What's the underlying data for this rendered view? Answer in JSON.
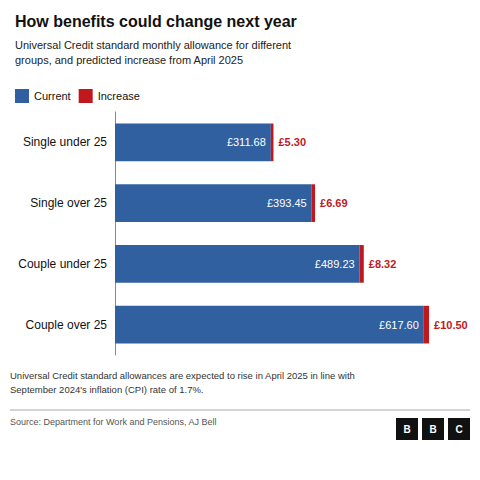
{
  "chart_data": {
    "type": "bar",
    "orientation": "horizontal",
    "stacked": true,
    "title": "How benefits could change next year",
    "subtitle": "Universal Credit standard monthly allowance for different\ngroups, and predicted increase from April 2025",
    "categories": [
      "Single under 25",
      "Single over 25",
      "Couple under 25",
      "Couple over 25"
    ],
    "series": [
      {
        "name": "Current",
        "color": "#3060a0",
        "values": [
          311.68,
          393.45,
          489.23,
          617.6
        ],
        "value_labels": [
          "£311.68",
          "£393.45",
          "£489.23",
          "£617.60"
        ]
      },
      {
        "name": "Increase",
        "color": "#c0181c",
        "values": [
          5.3,
          6.69,
          8.32,
          10.5
        ],
        "value_labels": [
          "£5.30",
          "£6.69",
          "£8.32",
          "£10.50"
        ]
      }
    ],
    "xlim": [
      0,
      690
    ],
    "data_labels": true,
    "tick_labels": "y",
    "grid": false,
    "legend": "top",
    "annotations": [
      "Universal Credit standard allowances are expected to rise in April 2025 in line with\nSeptember 2024's inflation (CPI) rate of 1.7%.",
      "Source: Department for Work and Pensions, AJ Bell",
      "BBC"
    ]
  }
}
